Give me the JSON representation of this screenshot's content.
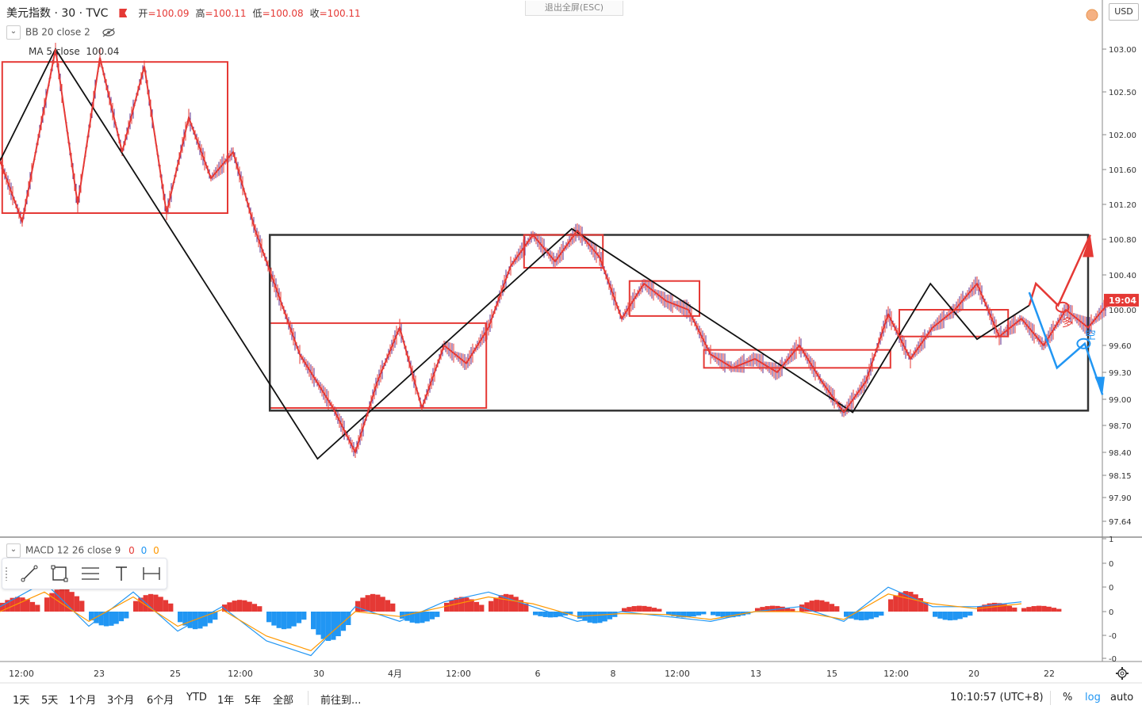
{
  "header": {
    "symbol": "美元指数 · 30 · TVC",
    "open_label": "开",
    "open": "=100.09",
    "high_label": "高",
    "high": "=100.11",
    "low_label": "低",
    "low": "=100.08",
    "close_label": "收",
    "close": "=100.11"
  },
  "indicators": {
    "bb_label": "BB 20 close 2",
    "ma_label": "MA 5 close",
    "ma_value": "100.04",
    "macd_label": "MACD 12 26 close 9",
    "macd_v1": "0",
    "macd_v2": "0",
    "macd_v3": "0"
  },
  "exit_fullscreen": "退出全屏(ESC)",
  "currency": "USD",
  "last_price_badge": "19:04",
  "annotations": {
    "long": "多",
    "short": "空"
  },
  "bottom_bar": {
    "ranges": [
      "1天",
      "5天",
      "1个月",
      "3个月",
      "6个月",
      "YTD",
      "1年",
      "5年",
      "全部"
    ],
    "goto": "前往到...",
    "clock": "10:10:57 (UTC+8)",
    "percent": "%",
    "log": "log",
    "auto": "auto"
  },
  "colors": {
    "up": "#e53935",
    "down": "#5b2c8e",
    "black_lines": "#111111",
    "short_arrow": "#2196f3",
    "long_arrow": "#e53935"
  },
  "chart_data": {
    "type": "line",
    "title": "美元指数 · 30 · TVC",
    "x_ticks": [
      "12:00",
      "23",
      "25",
      "12:00",
      "30",
      "4月",
      "12:00",
      "6",
      "8",
      "12:00",
      "13",
      "15",
      "12:00",
      "20",
      "22"
    ],
    "y_ticks": [
      "103.00",
      "102.50",
      "102.00",
      "101.60",
      "101.20",
      "100.80",
      "100.40",
      "100.00",
      "99.60",
      "99.30",
      "99.00",
      "98.70",
      "98.40",
      "98.15",
      "97.90",
      "97.64"
    ],
    "ylim": [
      97.55,
      103.45
    ],
    "series": [
      {
        "name": "MA 5 close",
        "x": [
          0,
          2,
          5,
          7,
          9,
          11,
          13,
          15,
          17,
          19,
          21,
          23,
          25,
          27,
          30,
          32,
          34,
          36,
          38,
          40,
          42,
          44,
          46,
          48,
          50,
          52,
          54,
          56,
          58,
          60,
          62,
          64,
          66,
          68,
          70,
          72,
          74,
          76,
          78,
          80,
          82,
          84,
          86,
          88,
          90,
          92,
          94,
          96,
          98,
          100
        ],
        "values": [
          101.7,
          101.0,
          103.0,
          101.2,
          102.9,
          101.8,
          102.8,
          101.1,
          102.2,
          101.5,
          101.8,
          100.9,
          100.2,
          99.5,
          98.9,
          98.4,
          99.2,
          99.8,
          98.9,
          99.6,
          99.4,
          99.8,
          100.5,
          100.85,
          100.55,
          100.9,
          100.6,
          99.9,
          100.3,
          100.1,
          100.0,
          99.5,
          99.35,
          99.45,
          99.3,
          99.6,
          99.2,
          98.85,
          99.2,
          99.95,
          99.45,
          99.8,
          100.0,
          100.3,
          99.7,
          99.9,
          99.6,
          100.0,
          99.8,
          100.1
        ]
      }
    ],
    "boxes": [
      {
        "color": "red",
        "x": [
          0.2,
          20.5
        ],
        "y": [
          101.1,
          102.85
        ]
      },
      {
        "color": "red",
        "x": [
          24.3,
          43.8
        ],
        "y": [
          98.9,
          99.85
        ]
      },
      {
        "color": "black",
        "x": [
          24.3,
          98.0
        ],
        "y": [
          98.87,
          100.85
        ]
      },
      {
        "color": "red",
        "x": [
          47.2,
          54.3
        ],
        "y": [
          100.48,
          100.85
        ]
      },
      {
        "color": "red",
        "x": [
          56.7,
          63.0
        ],
        "y": [
          99.93,
          100.33
        ]
      },
      {
        "color": "red",
        "x": [
          63.4,
          80.2
        ],
        "y": [
          99.35,
          99.55
        ]
      },
      {
        "color": "red",
        "x": [
          81.0,
          90.8
        ],
        "y": [
          99.7,
          100.0
        ]
      }
    ],
    "black_swings": [
      {
        "x": 0,
        "y": 101.7
      },
      {
        "x": 5,
        "y": 103.0
      },
      {
        "x": 28.6,
        "y": 98.33
      },
      {
        "x": 51.5,
        "y": 100.92
      },
      {
        "x": 76.8,
        "y": 98.85
      },
      {
        "x": 83.8,
        "y": 100.3
      },
      {
        "x": 88.0,
        "y": 99.67
      },
      {
        "x": 92.7,
        "y": 100.05
      }
    ],
    "macd": {
      "ylim": [
        -0.6,
        0.6
      ],
      "y_ticks": [
        "0",
        "0",
        "0",
        "-0",
        "-0"
      ],
      "x": [
        0,
        4,
        8,
        12,
        16,
        20,
        24,
        28,
        32,
        36,
        40,
        44,
        48,
        52,
        56,
        60,
        64,
        68,
        72,
        76,
        80,
        84,
        88,
        92
      ],
      "macd": [
        0.05,
        0.3,
        -0.15,
        0.2,
        -0.2,
        0.05,
        -0.3,
        -0.45,
        0.05,
        -0.1,
        0.1,
        0.2,
        0.05,
        -0.1,
        0.0,
        -0.05,
        -0.1,
        0.0,
        0.05,
        -0.1,
        0.25,
        0.05,
        0.05,
        0.1
      ],
      "signal": [
        0.0,
        0.2,
        -0.1,
        0.15,
        -0.15,
        0.02,
        -0.25,
        -0.4,
        0.0,
        -0.05,
        0.05,
        0.15,
        0.08,
        -0.05,
        -0.02,
        -0.03,
        -0.08,
        0.0,
        0.0,
        -0.08,
        0.18,
        0.08,
        0.03,
        0.08
      ],
      "hist": [
        0.05,
        0.08,
        -0.05,
        0.06,
        -0.06,
        0.04,
        -0.06,
        -0.1,
        0.06,
        -0.04,
        0.05,
        0.06,
        -0.02,
        -0.04,
        0.02,
        -0.02,
        -0.02,
        0.02,
        0.04,
        -0.03,
        0.07,
        -0.03,
        0.03,
        0.02
      ]
    }
  }
}
